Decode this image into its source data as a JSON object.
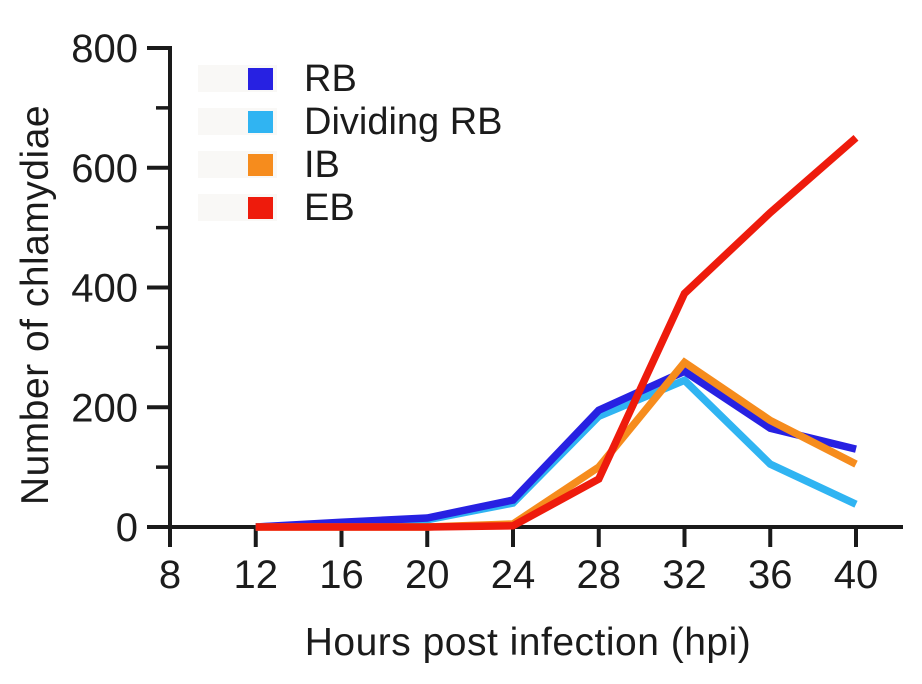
{
  "figure": {
    "background": "#ffffff"
  },
  "chart_data": {
    "type": "line",
    "title": "",
    "xlabel": "Hours post infection (hpi)",
    "ylabel": "Number of chlamydiae",
    "x": [
      12,
      16,
      20,
      24,
      28,
      32,
      36,
      40
    ],
    "x_ticks": [
      8,
      12,
      16,
      20,
      24,
      28,
      32,
      36,
      40
    ],
    "y_ticks": [
      0,
      200,
      400,
      600,
      800
    ],
    "y_minor_ticks": [
      100,
      300,
      500,
      700
    ],
    "xlim": [
      8,
      42
    ],
    "ylim": [
      0,
      800
    ],
    "grid": false,
    "legend_position": "upper-left-inside",
    "axis_color": "#1a1a1a",
    "series": [
      {
        "name": "RB",
        "color": "#2721e2",
        "values": [
          0,
          8,
          15,
          45,
          195,
          260,
          165,
          130
        ]
      },
      {
        "name": "Dividing RB",
        "color": "#30b4f2",
        "values": [
          0,
          5,
          12,
          40,
          185,
          245,
          105,
          38
        ]
      },
      {
        "name": "IB",
        "color": "#f68c1d",
        "values": [
          0,
          0,
          0,
          5,
          100,
          275,
          178,
          105
        ]
      },
      {
        "name": "EB",
        "color": "#ee1b0c",
        "values": [
          0,
          0,
          0,
          2,
          80,
          390,
          525,
          650
        ]
      }
    ]
  }
}
